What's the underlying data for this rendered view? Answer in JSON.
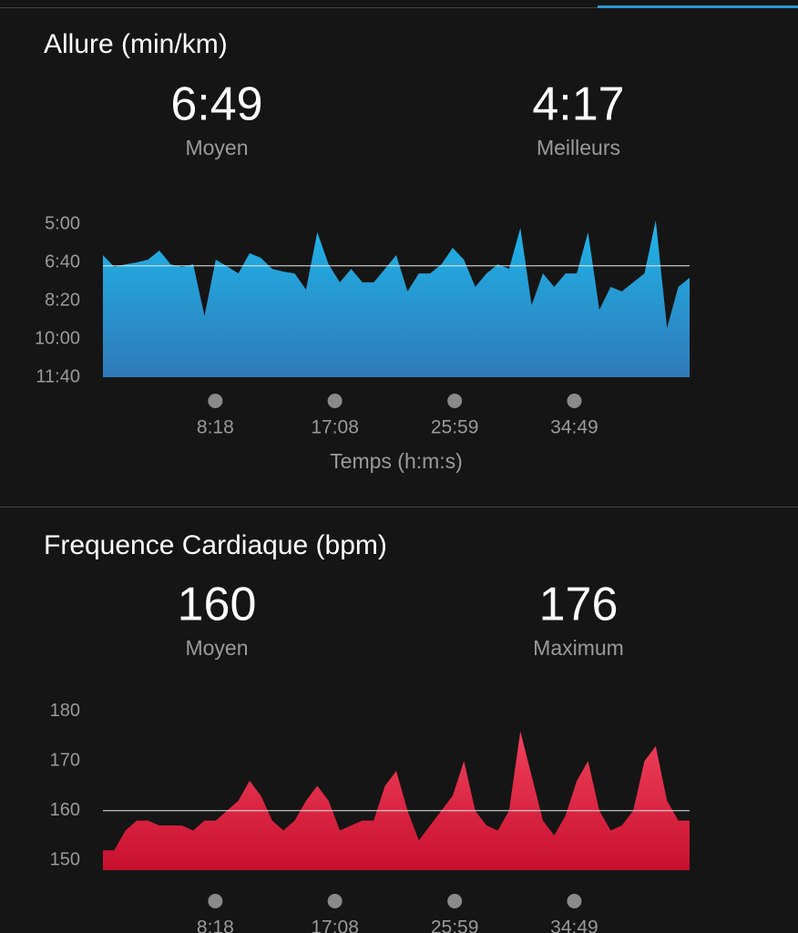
{
  "chart_data": [
    {
      "type": "area",
      "title": "Allure (min/km)",
      "stats": [
        {
          "value": 409,
          "label": "6:49",
          "caption": "Moyen"
        },
        {
          "value": 257,
          "label": "4:17",
          "caption": "Meilleurs"
        }
      ],
      "x": [
        0,
        50,
        100,
        150,
        200,
        250,
        300,
        350,
        400,
        450,
        500,
        550,
        600,
        650,
        700,
        750,
        800,
        850,
        900,
        950,
        1000,
        1050,
        1100,
        1150,
        1200,
        1250,
        1300,
        1350,
        1400,
        1450,
        1500,
        1550,
        1600,
        1650,
        1700,
        1750,
        1800,
        1850,
        1900,
        1950,
        2000,
        2050,
        2100,
        2150,
        2200,
        2250,
        2300,
        2350,
        2400,
        2450,
        2500,
        2550,
        2600
      ],
      "series": [
        {
          "name": "Allure",
          "color": "#1fb6ea",
          "color_bottom": "#2f79b8",
          "values": [
            381,
            412,
            405,
            400,
            393,
            369,
            405,
            412,
            405,
            540,
            393,
            410,
            429,
            376,
            388,
            417,
            424,
            429,
            471,
            321,
            405,
            452,
            417,
            452,
            452,
            417,
            381,
            476,
            429,
            429,
            405,
            362,
            393,
            464,
            429,
            405,
            417,
            310,
            512,
            429,
            464,
            429,
            429,
            321,
            524,
            464,
            476,
            452,
            429,
            290,
            571,
            464,
            440
          ]
        }
      ],
      "xlim": [
        0,
        2600
      ],
      "xticks": [
        {
          "value": 498,
          "label": "8:18"
        },
        {
          "value": 1028,
          "label": "17:08"
        },
        {
          "value": 1559,
          "label": "25:59"
        },
        {
          "value": 2089,
          "label": "34:49"
        }
      ],
      "xlabel": "Temps (h:m:s)",
      "ylim": [
        700,
        300
      ],
      "yticks": [
        {
          "value": 300,
          "label": "5:00"
        },
        {
          "value": 400,
          "label": "6:40"
        },
        {
          "value": 500,
          "label": "8:20"
        },
        {
          "value": 600,
          "label": "10:00"
        },
        {
          "value": 700,
          "label": "11:40"
        }
      ]
    },
    {
      "type": "area",
      "title": "Frequence Cardiaque (bpm)",
      "stats": [
        {
          "value": 160,
          "caption": "Moyen"
        },
        {
          "value": 176,
          "caption": "Maximum"
        }
      ],
      "x": [
        0,
        50,
        100,
        150,
        200,
        250,
        300,
        350,
        400,
        450,
        500,
        550,
        600,
        650,
        700,
        750,
        800,
        850,
        900,
        950,
        1000,
        1050,
        1100,
        1150,
        1200,
        1250,
        1300,
        1350,
        1400,
        1450,
        1500,
        1550,
        1600,
        1650,
        1700,
        1750,
        1800,
        1850,
        1900,
        1950,
        2000,
        2050,
        2100,
        2150,
        2200,
        2250,
        2300,
        2350,
        2400,
        2450,
        2500,
        2550,
        2600
      ],
      "series": [
        {
          "name": "Frequence Cardiaque",
          "color": "#f0425c",
          "color_bottom": "#c8102e",
          "values": [
            152,
            152,
            156,
            158,
            158,
            157,
            157,
            157,
            156,
            158,
            158,
            160,
            162,
            166,
            163,
            158,
            156,
            158,
            162,
            165,
            162,
            156,
            157,
            158,
            158,
            165,
            168,
            160,
            154,
            157,
            160,
            163,
            170,
            160,
            157,
            156,
            160,
            176,
            167,
            158,
            155,
            159,
            166,
            170,
            160,
            156,
            157,
            160,
            170,
            173,
            162,
            158,
            158
          ]
        }
      ],
      "xlim": [
        0,
        2600
      ],
      "xticks": [
        {
          "value": 498,
          "label": "8:18"
        },
        {
          "value": 1028,
          "label": "17:08"
        },
        {
          "value": 1559,
          "label": "25:59"
        },
        {
          "value": 2089,
          "label": "34:49"
        }
      ],
      "ylim": [
        148,
        182
      ],
      "yticks": [
        150,
        160,
        170,
        180
      ]
    }
  ]
}
